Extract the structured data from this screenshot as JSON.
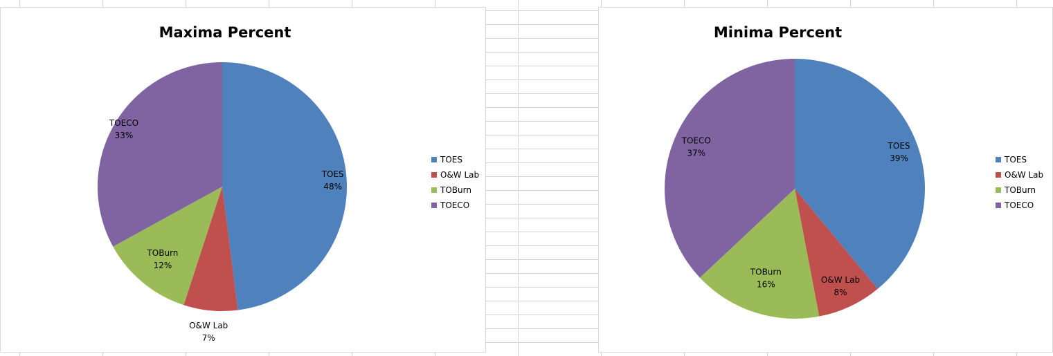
{
  "chart_data": [
    {
      "type": "pie",
      "title": "Maxima Percent",
      "categories": [
        "TOES",
        "O&W Lab",
        "TOBurn",
        "TOECO"
      ],
      "values": [
        48,
        7,
        12,
        33
      ],
      "labels": [
        "48%",
        "7%",
        "12%",
        "33%"
      ],
      "legend_position": "right"
    },
    {
      "type": "pie",
      "title": "Minima Percent",
      "categories": [
        "TOES",
        "O&W Lab",
        "TOBurn",
        "TOECO"
      ],
      "values": [
        39,
        8,
        16,
        37
      ],
      "labels": [
        "39%",
        "8%",
        "16%",
        "37%"
      ],
      "legend_position": "right"
    }
  ],
  "colors": {
    "TOES": "#4f81bd",
    "O&W Lab": "#c0504d",
    "TOBurn": "#9bbb59",
    "TOECO": "#8064a2"
  }
}
